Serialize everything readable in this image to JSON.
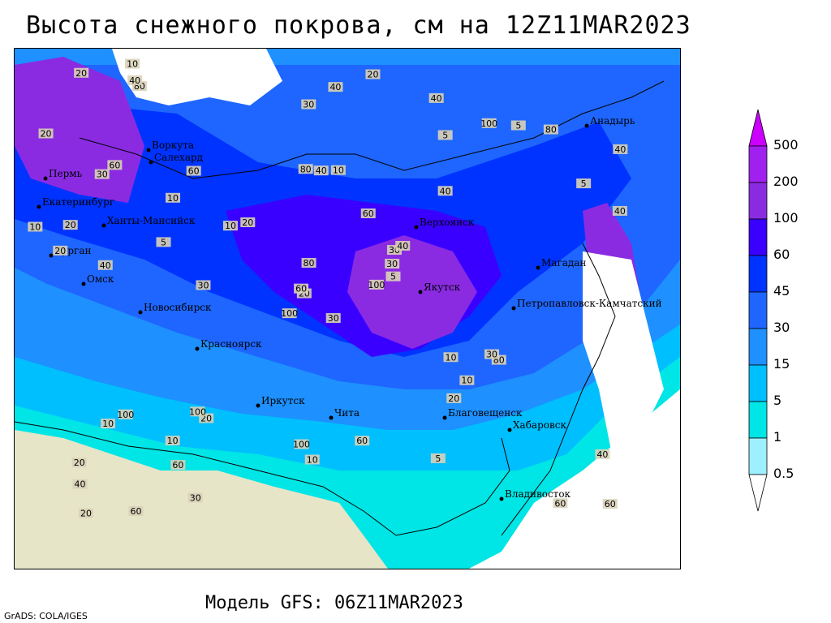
{
  "title": "Высота снежного покрова, см на 12Z11MAR2023",
  "subtitle": "Модель GFS: 06Z11MAR2023",
  "credit": "GrADS: COLA/IGES",
  "legend": {
    "levels": [
      "500",
      "200",
      "100",
      "60",
      "45",
      "30",
      "15",
      "5",
      "1",
      "0.5"
    ],
    "colors": [
      "#cc00ff",
      "#a020f0",
      "#8a2be2",
      "#3a00ff",
      "#0033ff",
      "#1e66ff",
      "#1e90ff",
      "#00bfff",
      "#00e5e5",
      "#9ff0ff"
    ]
  },
  "cities": [
    {
      "name": "Пермь"
    },
    {
      "name": "Екатеринбург"
    },
    {
      "name": "Курган"
    },
    {
      "name": "Омск"
    },
    {
      "name": "Ханты-Мансийск"
    },
    {
      "name": "Новосибирск"
    },
    {
      "name": "Красноярск"
    },
    {
      "name": "Иркутск"
    },
    {
      "name": "Чита"
    },
    {
      "name": "Благовещенск"
    },
    {
      "name": "Хабаровск"
    },
    {
      "name": "Владивосток"
    },
    {
      "name": "Якутск"
    },
    {
      "name": "Верхоянск"
    },
    {
      "name": "Магадан"
    },
    {
      "name": "Петропавловск-Камчатский"
    },
    {
      "name": "Анадырь"
    },
    {
      "name": "Воркута"
    },
    {
      "name": "Салехард"
    }
  ],
  "map_labels": [
    "30",
    "30",
    "20",
    "20",
    "30",
    "20",
    "40",
    "10",
    "5",
    "100",
    "80",
    "60",
    "40",
    "40",
    "100",
    "40",
    "60",
    "80",
    "60",
    "100",
    "20",
    "40",
    "60",
    "40",
    "40",
    "80",
    "60",
    "30",
    "20",
    "10",
    "40",
    "60",
    "100",
    "80",
    "60",
    "100",
    "100",
    "60",
    "40",
    "30",
    "20",
    "10",
    "5",
    "20",
    "30",
    "10",
    "30",
    "20",
    "10",
    "5",
    "10",
    "5",
    "20",
    "10",
    "5",
    "10",
    "40",
    "20",
    "60",
    "80",
    "40",
    "30",
    "20",
    "10",
    "5",
    "10"
  ]
}
